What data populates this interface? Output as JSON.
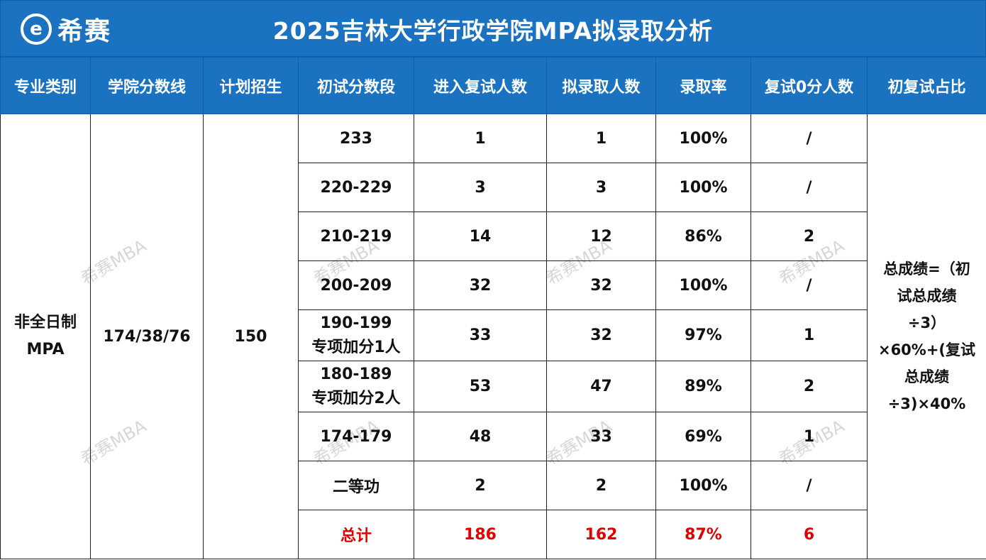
{
  "logo": {
    "text": "希赛",
    "mark": "e"
  },
  "title": "2025吉林大学行政学院MPA拟录取分析",
  "headers": [
    "专业类别",
    "学院分数线",
    "计划招生",
    "初试分数段",
    "进入复试人数",
    "拟录取人数",
    "录取率",
    "复试0分人数",
    "初复试占比"
  ],
  "program": {
    "name_line1": "非全日制",
    "name_line2": "MPA",
    "cutoff": "174/38/76",
    "plan": "150"
  },
  "rows": [
    {
      "range": "233",
      "note": "",
      "retest": "1",
      "admit": "1",
      "rate": "100%",
      "zero": "/"
    },
    {
      "range": "220-229",
      "note": "",
      "retest": "3",
      "admit": "3",
      "rate": "100%",
      "zero": "/"
    },
    {
      "range": "210-219",
      "note": "",
      "retest": "14",
      "admit": "12",
      "rate": "86%",
      "zero": "2"
    },
    {
      "range": "200-209",
      "note": "",
      "retest": "32",
      "admit": "32",
      "rate": "100%",
      "zero": "/"
    },
    {
      "range": "190-199",
      "note": "专项加分1人",
      "retest": "33",
      "admit": "32",
      "rate": "97%",
      "zero": "1"
    },
    {
      "range": "180-189",
      "note": "专项加分2人",
      "retest": "53",
      "admit": "47",
      "rate": "89%",
      "zero": "2"
    },
    {
      "range": "174-179",
      "note": "",
      "retest": "48",
      "admit": "33",
      "rate": "69%",
      "zero": "1"
    },
    {
      "range": "二等功",
      "note": "",
      "retest": "2",
      "admit": "2",
      "rate": "100%",
      "zero": "/"
    }
  ],
  "total": {
    "label": "总计",
    "retest": "186",
    "admit": "162",
    "rate": "87%",
    "zero": "6"
  },
  "formula": [
    "总成绩=（初",
    "试总成绩",
    "÷3）",
    "×60%+(复试",
    "总成绩",
    "÷3)×40%"
  ],
  "watermark": "希赛MBA",
  "colors": {
    "header_blue": "#1a72c0",
    "total_red": "#e00000"
  }
}
